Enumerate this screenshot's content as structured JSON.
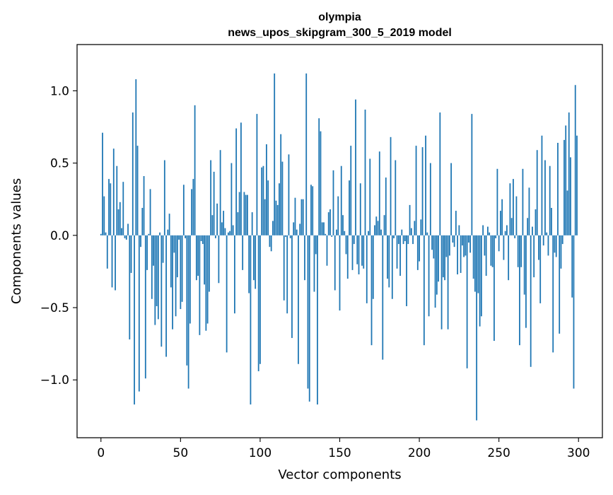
{
  "chart_data": {
    "type": "bar",
    "title_lines": [
      "olympia",
      "news_upos_skipgram_300_5_2019 model"
    ],
    "xlabel": "Vector components",
    "ylabel": "Components values",
    "xlim": [
      -15,
      315
    ],
    "ylim": [
      -1.4,
      1.32
    ],
    "xticks": [
      0,
      50,
      100,
      150,
      200,
      250,
      300
    ],
    "xtick_labels": [
      "0",
      "50",
      "100",
      "150",
      "200",
      "250",
      "300"
    ],
    "yticks": [
      -1.0,
      -0.5,
      0.0,
      0.5,
      1.0
    ],
    "ytick_labels": [
      "−1.0",
      "−0.5",
      "0.0",
      "0.5",
      "1.0"
    ],
    "bar_color": "#1f77b4",
    "grid": false,
    "values": [
      0.01,
      0.71,
      0.27,
      0.02,
      -0.23,
      0.39,
      0.36,
      -0.36,
      0.6,
      -0.38,
      0.48,
      0.18,
      0.23,
      0.05,
      0.37,
      -0.02,
      -0.03,
      0.08,
      -0.72,
      -0.26,
      0.85,
      -1.17,
      1.08,
      0.62,
      -1.08,
      -0.08,
      0.19,
      0.41,
      -0.99,
      -0.24,
      0.01,
      0.32,
      -0.44,
      -0.21,
      -0.62,
      -0.49,
      -0.58,
      0.02,
      -0.77,
      -0.19,
      0.52,
      -0.84,
      0.04,
      0.15,
      -0.36,
      -0.65,
      -0.12,
      -0.56,
      -0.29,
      -0.03,
      -0.51,
      -0.46,
      0.35,
      -0.02,
      -0.9,
      -1.06,
      -0.61,
      0.32,
      0.39,
      0.9,
      -0.31,
      -0.28,
      -0.69,
      -0.04,
      -0.06,
      -0.34,
      -0.66,
      -0.61,
      -0.39,
      0.52,
      0.14,
      0.44,
      -0.02,
      0.22,
      -0.33,
      0.59,
      0.09,
      0.17,
      0.05,
      -0.81,
      0.02,
      0.03,
      0.5,
      0.07,
      -0.54,
      0.74,
      0.16,
      0.3,
      0.78,
      -0.24,
      0.3,
      0.28,
      0.28,
      -0.4,
      -1.17,
      0.16,
      -0.31,
      -0.37,
      0.84,
      -0.94,
      -0.89,
      0.47,
      0.48,
      0.25,
      0.63,
      0.38,
      -0.08,
      -0.11,
      0.1,
      1.12,
      0.24,
      0.21,
      0.36,
      0.7,
      0.51,
      -0.45,
      -0.01,
      -0.54,
      0.56,
      -0.02,
      -0.71,
      0.09,
      0.26,
      0.04,
      -0.89,
      0.08,
      0.25,
      0.25,
      -0.31,
      1.12,
      -1.06,
      -1.15,
      0.35,
      0.34,
      -0.39,
      -0.13,
      -1.17,
      0.81,
      0.72,
      0.09,
      0.09,
      0.01,
      -0.21,
      0.16,
      0.18,
      -0.01,
      0.45,
      -0.38,
      0.04,
      0.27,
      -0.52,
      0.48,
      0.14,
      0.03,
      -0.13,
      -0.3,
      0.38,
      0.62,
      -0.24,
      -0.06,
      0.94,
      -0.2,
      -0.27,
      0.36,
      -0.21,
      -0.23,
      0.87,
      -0.47,
      0.03,
      0.53,
      -0.76,
      -0.44,
      0.07,
      0.13,
      0.1,
      0.58,
      0.04,
      -0.86,
      0.14,
      0.4,
      -0.3,
      -0.36,
      0.68,
      -0.44,
      -0.02,
      0.52,
      -0.23,
      -0.06,
      -0.28,
      0.04,
      -0.06,
      -0.04,
      -0.49,
      -0.06,
      0.21,
      0.05,
      -0.06,
      0.1,
      0.62,
      -0.24,
      -0.18,
      0.11,
      0.61,
      -0.76,
      0.69,
      0.02,
      -0.56,
      0.5,
      -0.1,
      -0.16,
      -0.5,
      -0.41,
      -0.32,
      0.85,
      -0.65,
      -0.29,
      -0.31,
      -0.15,
      -0.65,
      -0.14,
      0.5,
      -0.05,
      -0.08,
      0.17,
      -0.27,
      0.07,
      -0.26,
      -0.07,
      -0.15,
      -0.14,
      -0.92,
      -0.05,
      -0.12,
      0.84,
      -0.3,
      -0.39,
      -1.28,
      -0.4,
      -0.63,
      -0.56,
      0.07,
      -0.14,
      -0.28,
      0.06,
      0.02,
      -0.21,
      -0.22,
      -0.73,
      -0.02,
      0.46,
      -0.11,
      0.17,
      0.25,
      -0.17,
      0.03,
      0.07,
      -0.31,
      0.36,
      0.12,
      0.39,
      -0.02,
      0.27,
      -0.22,
      -0.76,
      -0.22,
      0.46,
      -0.41,
      -0.64,
      0.12,
      0.33,
      -0.91,
      0.06,
      -0.29,
      0.18,
      0.59,
      -0.17,
      -0.47,
      0.69,
      -0.07,
      0.52,
      0.02,
      -0.14,
      0.48,
      0.19,
      -0.81,
      -0.12,
      -0.15,
      0.64,
      -0.68,
      -0.23,
      -0.06,
      0.66,
      0.76,
      0.31,
      0.85,
      0.54,
      -0.43,
      -1.06,
      1.04,
      0.69
    ]
  }
}
